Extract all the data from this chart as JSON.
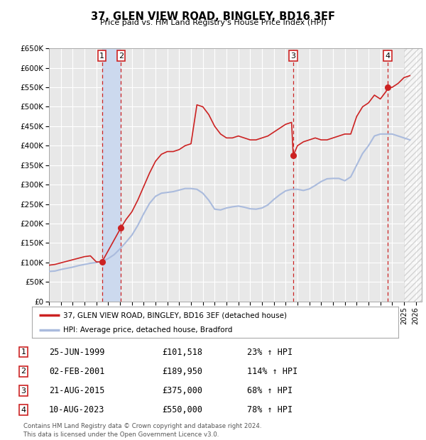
{
  "title": "37, GLEN VIEW ROAD, BINGLEY, BD16 3EF",
  "subtitle": "Price paid vs. HM Land Registry's House Price Index (HPI)",
  "legend_label_red": "37, GLEN VIEW ROAD, BINGLEY, BD16 3EF (detached house)",
  "legend_label_blue": "HPI: Average price, detached house, Bradford",
  "footer_line1": "Contains HM Land Registry data © Crown copyright and database right 2024.",
  "footer_line2": "This data is licensed under the Open Government Licence v3.0.",
  "table": [
    {
      "num": "1",
      "date": "25-JUN-1999",
      "price": "£101,518",
      "hpi": "23% ↑ HPI"
    },
    {
      "num": "2",
      "date": "02-FEB-2001",
      "price": "£189,950",
      "hpi": "114% ↑ HPI"
    },
    {
      "num": "3",
      "date": "21-AUG-2015",
      "price": "£375,000",
      "hpi": "68% ↑ HPI"
    },
    {
      "num": "4",
      "date": "10-AUG-2023",
      "price": "£550,000",
      "hpi": "78% ↑ HPI"
    }
  ],
  "sale_dates_decimal": [
    1999.48,
    2001.09,
    2015.64,
    2023.61
  ],
  "sale_prices": [
    101518,
    189950,
    375000,
    550000
  ],
  "hpi_color": "#aabbdd",
  "price_color": "#cc2222",
  "plot_bg_color": "#e8e8e8",
  "highlight_bg_color": "#ccd9ee",
  "ylim": [
    0,
    650000
  ],
  "xlim_start": 1995.0,
  "xlim_end": 2026.5,
  "xticks": [
    1995,
    1996,
    1997,
    1998,
    1999,
    2000,
    2001,
    2002,
    2003,
    2004,
    2005,
    2006,
    2007,
    2008,
    2009,
    2010,
    2011,
    2012,
    2013,
    2014,
    2015,
    2016,
    2017,
    2018,
    2019,
    2020,
    2021,
    2022,
    2023,
    2024,
    2025,
    2026
  ],
  "yticks": [
    0,
    50000,
    100000,
    150000,
    200000,
    250000,
    300000,
    350000,
    400000,
    450000,
    500000,
    550000,
    600000,
    650000
  ],
  "hpi_x": [
    1995.0,
    1995.5,
    1996.0,
    1996.5,
    1997.0,
    1997.5,
    1998.0,
    1998.5,
    1999.0,
    1999.5,
    2000.0,
    2000.5,
    2001.0,
    2001.5,
    2002.0,
    2002.5,
    2003.0,
    2003.5,
    2004.0,
    2004.5,
    2005.0,
    2005.5,
    2006.0,
    2006.5,
    2007.0,
    2007.5,
    2008.0,
    2008.5,
    2009.0,
    2009.5,
    2010.0,
    2010.5,
    2011.0,
    2011.5,
    2012.0,
    2012.5,
    2013.0,
    2013.5,
    2014.0,
    2014.5,
    2015.0,
    2015.5,
    2016.0,
    2016.5,
    2017.0,
    2017.5,
    2018.0,
    2018.5,
    2019.0,
    2019.5,
    2020.0,
    2020.5,
    2021.0,
    2021.5,
    2022.0,
    2022.5,
    2023.0,
    2023.5,
    2024.0,
    2024.5,
    2025.0,
    2025.5
  ],
  "hpi_y": [
    77000,
    78000,
    82000,
    85000,
    88000,
    92000,
    95000,
    98000,
    100000,
    103000,
    110000,
    120000,
    135000,
    152000,
    170000,
    195000,
    225000,
    252000,
    270000,
    278000,
    280000,
    282000,
    286000,
    290000,
    290000,
    288000,
    278000,
    260000,
    237000,
    235000,
    240000,
    243000,
    245000,
    242000,
    238000,
    237000,
    240000,
    248000,
    262000,
    274000,
    284000,
    288000,
    288000,
    285000,
    289000,
    298000,
    308000,
    315000,
    316000,
    316000,
    310000,
    320000,
    350000,
    380000,
    400000,
    425000,
    430000,
    430000,
    430000,
    425000,
    420000,
    415000
  ],
  "red_x": [
    1995.0,
    1995.5,
    1996.0,
    1996.5,
    1997.0,
    1997.5,
    1998.0,
    1998.5,
    1999.0,
    1999.48,
    2001.09,
    2001.5,
    2002.0,
    2002.5,
    2003.0,
    2003.5,
    2004.0,
    2004.5,
    2005.0,
    2005.5,
    2006.0,
    2006.5,
    2007.0,
    2007.5,
    2008.0,
    2008.5,
    2009.0,
    2009.5,
    2010.0,
    2010.5,
    2011.0,
    2011.5,
    2012.0,
    2012.5,
    2013.0,
    2013.5,
    2014.0,
    2014.5,
    2015.0,
    2015.5,
    2015.64,
    2016.0,
    2016.5,
    2017.0,
    2017.5,
    2018.0,
    2018.5,
    2019.0,
    2019.5,
    2020.0,
    2020.5,
    2021.0,
    2021.5,
    2022.0,
    2022.5,
    2023.0,
    2023.5,
    2023.61,
    2024.0,
    2024.5,
    2025.0,
    2025.5
  ],
  "red_y": [
    93000,
    95000,
    99000,
    103000,
    107000,
    111000,
    115000,
    117000,
    101518,
    101518,
    189950,
    210000,
    230000,
    260000,
    295000,
    330000,
    360000,
    378000,
    385000,
    385000,
    390000,
    400000,
    405000,
    505000,
    500000,
    480000,
    450000,
    430000,
    420000,
    420000,
    425000,
    420000,
    415000,
    415000,
    420000,
    425000,
    435000,
    445000,
    455000,
    460000,
    375000,
    400000,
    410000,
    415000,
    420000,
    415000,
    415000,
    420000,
    425000,
    430000,
    430000,
    475000,
    500000,
    510000,
    530000,
    520000,
    540000,
    550000,
    550000,
    560000,
    575000,
    580000
  ],
  "hatch_start": 2025.0,
  "sale_highlight_pairs": [
    [
      1999.48,
      2001.09
    ]
  ]
}
